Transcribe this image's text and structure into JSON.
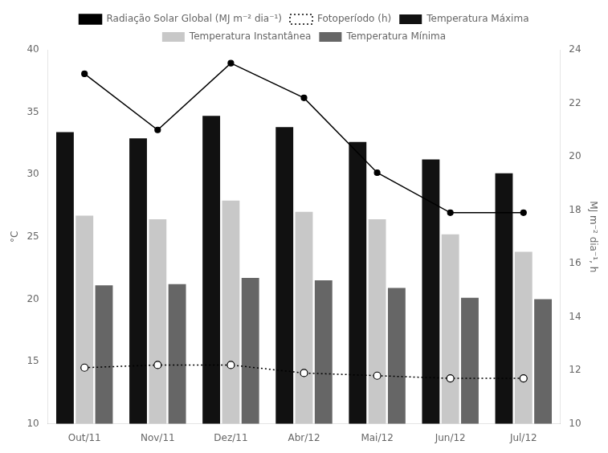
{
  "chart_data": {
    "type": "bar",
    "categories": [
      "Out/11",
      "Nov/11",
      "Dez/11",
      "Abr/12",
      "Mai/12",
      "Jun/12",
      "Jul/12"
    ],
    "series": [
      {
        "name": "Temperatura Máxima",
        "color": "#111111",
        "values": [
          33.4,
          32.9,
          34.7,
          33.8,
          32.6,
          31.2,
          30.1
        ]
      },
      {
        "name": "Temperatura Instantânea",
        "color": "#c8c8c8",
        "values": [
          26.7,
          26.4,
          27.9,
          27.0,
          26.4,
          25.2,
          23.8
        ]
      },
      {
        "name": "Temperatura Mínima",
        "color": "#666666",
        "values": [
          21.1,
          21.2,
          21.7,
          21.5,
          20.9,
          20.1,
          20.0
        ]
      },
      {
        "name": "Radiação Solar Global (MJ m⁻² dia⁻¹)",
        "type": "line",
        "axis": "y2",
        "color": "#000000",
        "marker": "circle",
        "line_style": "solid",
        "values": [
          23.1,
          21.0,
          23.5,
          22.2,
          19.4,
          17.9,
          17.9
        ]
      },
      {
        "name": "Fotoperíodo (h)",
        "type": "line",
        "axis": "y2",
        "color": "#000000",
        "marker": "open_circle",
        "line_style": "dotted",
        "values": [
          12.1,
          12.2,
          12.2,
          11.9,
          11.8,
          11.7,
          11.7
        ]
      }
    ],
    "ylabel": "°C",
    "y2label": "MJ m⁻² dia⁻¹, h",
    "ylim": [
      10,
      40
    ],
    "yticks": [
      10,
      15,
      20,
      25,
      30,
      35,
      40
    ],
    "y2lim": [
      10,
      24
    ],
    "y2ticks": [
      10,
      12,
      14,
      16,
      18,
      20,
      22,
      24
    ],
    "grid": false,
    "legend": "top"
  }
}
